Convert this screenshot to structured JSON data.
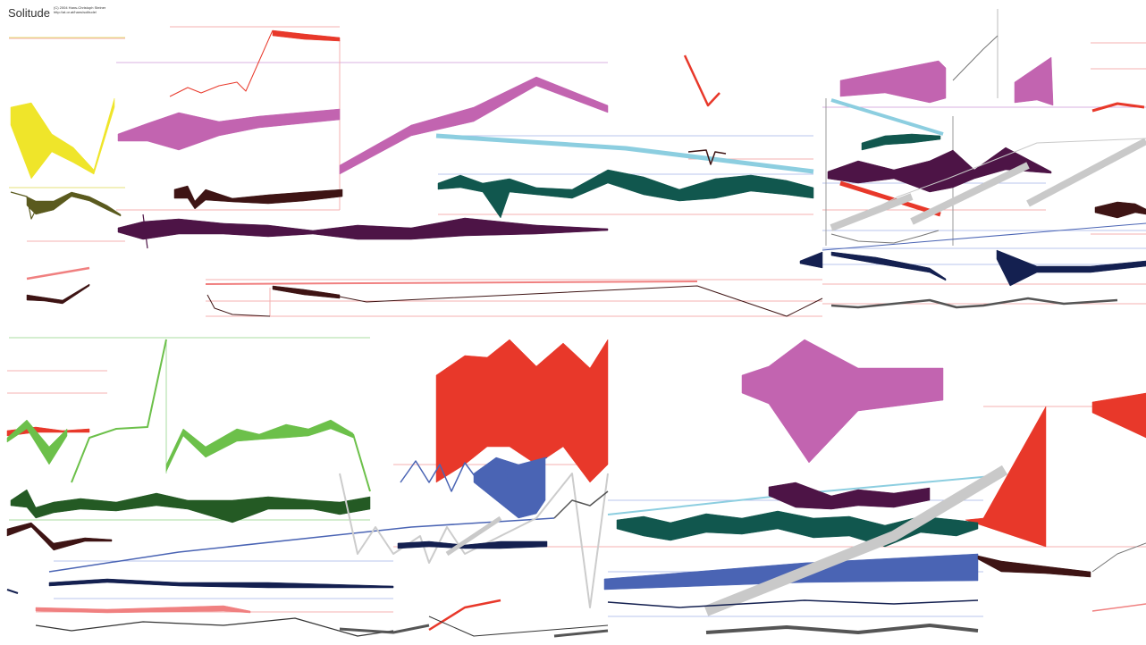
{
  "header": {
    "title": "Solitude",
    "credit_line1": "(C) 2004 Hans-Christoph Steiner",
    "credit_line2": "http://at.or.at/hans/solitude/"
  },
  "colors": {
    "yellow": "#efe52a",
    "olive": "#5a5a1e",
    "violet": "#c264b0",
    "plum": "#4d1446",
    "red": "#e8382a",
    "dark_brown": "#3e1414",
    "teal": "#11574e",
    "light_blue": "#8ccee0",
    "gray": "#c9c9c9",
    "navy": "#142050",
    "green": "#6cc04a",
    "dark_green": "#245a24",
    "blue": "#4a64b4",
    "pink": "#f08080",
    "guide_blue": "#b8c4ec",
    "guide_red": "#f4b0b0"
  }
}
